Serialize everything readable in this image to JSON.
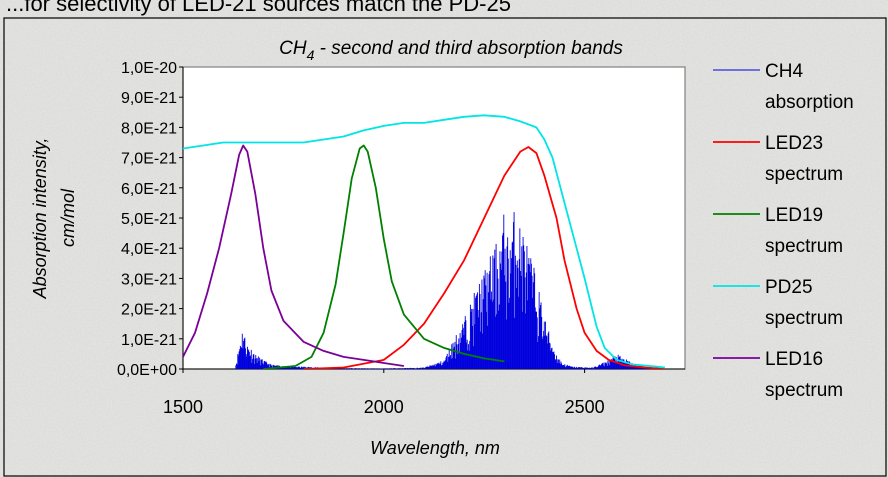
{
  "top_text": "...for selectivity of LED-21 sources match the PD-25",
  "chart_data": {
    "type": "line",
    "title_main": "CH",
    "title_sub": "4",
    "title_rest": " - second and third absorption bands",
    "xlabel": "Wavelength, nm",
    "ylabel_line1": "Absorption intensity,",
    "ylabel_line2": "cm/mol",
    "xlim": [
      1500,
      2750
    ],
    "ylim": [
      0,
      1e-20
    ],
    "xticks": [
      1500,
      2000,
      2500
    ],
    "xtick_labels": [
      "1500",
      "2000",
      "2500"
    ],
    "yticks": [
      0,
      1e-21,
      2e-21,
      3e-21,
      4e-21,
      5e-21,
      6e-21,
      7e-21,
      8e-21,
      9e-21,
      1e-20
    ],
    "ytick_labels": [
      "0,0E+00",
      "1,0E-21",
      "2,0E-21",
      "3,0E-21",
      "4,0E-21",
      "5,0E-21",
      "6,0E-21",
      "7,0E-21",
      "8,0E-21",
      "9,0E-21",
      "1,0E-20"
    ],
    "grid": false,
    "legend_position": "right",
    "series": [
      {
        "name_line1": "CH4",
        "name_line2": "absorption",
        "color": "#0000dd",
        "kind": "absorption-lines",
        "envelope": [
          [
            1630,
            5e-23
          ],
          [
            1640,
            8e-22
          ],
          [
            1645,
            1.25e-21
          ],
          [
            1650,
            1.45e-21
          ],
          [
            1655,
            1.05e-21
          ],
          [
            1660,
            8.5e-22
          ],
          [
            1670,
            7e-22
          ],
          [
            1680,
            5e-22
          ],
          [
            1700,
            3e-22
          ],
          [
            1720,
            1.5e-22
          ],
          [
            1750,
            1e-22
          ],
          [
            1800,
            8e-23
          ],
          [
            1850,
            5e-23
          ],
          [
            1900,
            3e-23
          ],
          [
            2000,
            2e-23
          ],
          [
            2100,
            5e-23
          ],
          [
            2150,
            3e-22
          ],
          [
            2170,
            9e-22
          ],
          [
            2190,
            1.4e-21
          ],
          [
            2210,
            2e-21
          ],
          [
            2230,
            2.7e-21
          ],
          [
            2250,
            3.3e-21
          ],
          [
            2270,
            3.9e-21
          ],
          [
            2290,
            4.5e-21
          ],
          [
            2300,
            5.3e-21
          ],
          [
            2310,
            4.4e-21
          ],
          [
            2320,
            5.1e-21
          ],
          [
            2330,
            5.5e-21
          ],
          [
            2340,
            4.8e-21
          ],
          [
            2350,
            4.6e-21
          ],
          [
            2360,
            4e-21
          ],
          [
            2370,
            3.6e-21
          ],
          [
            2380,
            3.1e-21
          ],
          [
            2390,
            2.4e-21
          ],
          [
            2400,
            1.8e-21
          ],
          [
            2410,
            1.3e-21
          ],
          [
            2420,
            9e-22
          ],
          [
            2430,
            5e-22
          ],
          [
            2445,
            2e-22
          ],
          [
            2470,
            8e-23
          ],
          [
            2520,
            5e-23
          ],
          [
            2560,
            3e-22
          ],
          [
            2580,
            5e-22
          ],
          [
            2600,
            3.5e-22
          ],
          [
            2620,
            2e-22
          ],
          [
            2650,
            8e-23
          ],
          [
            2680,
            2e-23
          ]
        ]
      },
      {
        "name_line1": "LED23",
        "name_line2": "spectrum",
        "color": "#ff0000",
        "points": [
          [
            1800,
            0.0
          ],
          [
            1900,
            5e-23
          ],
          [
            2000,
            3e-22
          ],
          [
            2050,
            8e-22
          ],
          [
            2100,
            1.5e-21
          ],
          [
            2150,
            2.5e-21
          ],
          [
            2200,
            3.6e-21
          ],
          [
            2250,
            5e-21
          ],
          [
            2300,
            6.4e-21
          ],
          [
            2340,
            7.2e-21
          ],
          [
            2360,
            7.35e-21
          ],
          [
            2380,
            7.15e-21
          ],
          [
            2400,
            6.4e-21
          ],
          [
            2430,
            5e-21
          ],
          [
            2450,
            3.6e-21
          ],
          [
            2480,
            2e-21
          ],
          [
            2500,
            1.2e-21
          ],
          [
            2530,
            6e-22
          ],
          [
            2560,
            3e-22
          ],
          [
            2600,
            1.2e-22
          ],
          [
            2650,
            5e-23
          ],
          [
            2700,
            0.0
          ]
        ]
      },
      {
        "name_line1": "LED19",
        "name_line2": "spectrum",
        "color": "#008000",
        "points": [
          [
            1700,
            0.0
          ],
          [
            1780,
            1e-22
          ],
          [
            1820,
            4e-22
          ],
          [
            1850,
            1.2e-21
          ],
          [
            1880,
            2.8e-21
          ],
          [
            1900,
            4.5e-21
          ],
          [
            1920,
            6.3e-21
          ],
          [
            1940,
            7.3e-21
          ],
          [
            1950,
            7.4e-21
          ],
          [
            1960,
            7.2e-21
          ],
          [
            1980,
            6e-21
          ],
          [
            2000,
            4.3e-21
          ],
          [
            2020,
            2.9e-21
          ],
          [
            2050,
            1.8e-21
          ],
          [
            2100,
            1e-21
          ],
          [
            2150,
            7e-22
          ],
          [
            2200,
            5e-22
          ],
          [
            2250,
            3.5e-22
          ],
          [
            2300,
            2.5e-22
          ]
        ]
      },
      {
        "name_line1": "PD25",
        "name_line2": "spectrum",
        "color": "#00e5e5",
        "points": [
          [
            1500,
            7.3e-21
          ],
          [
            1550,
            7.4e-21
          ],
          [
            1600,
            7.5e-21
          ],
          [
            1700,
            7.5e-21
          ],
          [
            1800,
            7.5e-21
          ],
          [
            1900,
            7.7e-21
          ],
          [
            1950,
            7.9e-21
          ],
          [
            2000,
            8.05e-21
          ],
          [
            2050,
            8.15e-21
          ],
          [
            2100,
            8.15e-21
          ],
          [
            2150,
            8.25e-21
          ],
          [
            2200,
            8.35e-21
          ],
          [
            2250,
            8.4e-21
          ],
          [
            2300,
            8.35e-21
          ],
          [
            2340,
            8.2e-21
          ],
          [
            2380,
            8e-21
          ],
          [
            2400,
            7.6e-21
          ],
          [
            2420,
            7e-21
          ],
          [
            2450,
            5.5e-21
          ],
          [
            2480,
            4e-21
          ],
          [
            2500,
            3e-21
          ],
          [
            2530,
            1.4e-21
          ],
          [
            2550,
            7e-22
          ],
          [
            2580,
            3e-22
          ],
          [
            2620,
            1.5e-22
          ],
          [
            2680,
            8e-23
          ],
          [
            2700,
            5e-23
          ]
        ]
      },
      {
        "name_line1": "LED16",
        "name_line2": "spectrum",
        "color": "#7b0099",
        "points": [
          [
            1500,
            4e-22
          ],
          [
            1530,
            1.2e-21
          ],
          [
            1560,
            2.5e-21
          ],
          [
            1590,
            4e-21
          ],
          [
            1620,
            5.8e-21
          ],
          [
            1640,
            7.1e-21
          ],
          [
            1650,
            7.4e-21
          ],
          [
            1660,
            7.2e-21
          ],
          [
            1680,
            5.8e-21
          ],
          [
            1700,
            4e-21
          ],
          [
            1720,
            2.6e-21
          ],
          [
            1750,
            1.6e-21
          ],
          [
            1800,
            9e-22
          ],
          [
            1850,
            6e-22
          ],
          [
            1900,
            4e-22
          ],
          [
            1950,
            3e-22
          ],
          [
            2000,
            2e-22
          ],
          [
            2050,
            1e-22
          ]
        ]
      }
    ]
  }
}
